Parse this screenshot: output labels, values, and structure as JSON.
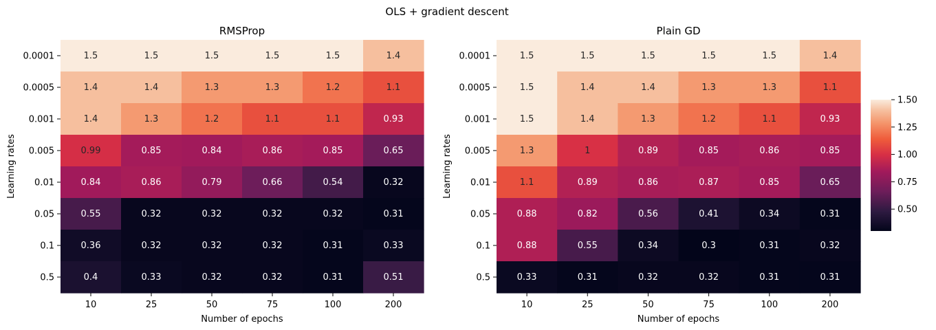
{
  "suptitle": "OLS + gradient descent",
  "colorbar": {
    "min": 0.3,
    "max": 1.5,
    "ticks": [
      "0.50",
      "0.75",
      "1.00",
      "1.25",
      "1.50"
    ]
  },
  "chart_data": [
    {
      "type": "heatmap",
      "title": "RMSProp",
      "xlabel": "Number of epochs",
      "ylabel": "Learning rates",
      "x_categories": [
        "10",
        "25",
        "50",
        "75",
        "100",
        "200"
      ],
      "y_categories": [
        "0.0001",
        "0.0005",
        "0.001",
        "0.005",
        "0.01",
        "0.05",
        "0.1",
        "0.5"
      ],
      "values": [
        [
          1.5,
          1.5,
          1.5,
          1.5,
          1.5,
          1.4
        ],
        [
          1.4,
          1.4,
          1.3,
          1.3,
          1.2,
          1.1
        ],
        [
          1.4,
          1.3,
          1.2,
          1.1,
          1.1,
          0.93
        ],
        [
          0.99,
          0.85,
          0.84,
          0.86,
          0.85,
          0.65
        ],
        [
          0.84,
          0.86,
          0.79,
          0.66,
          0.54,
          0.32
        ],
        [
          0.55,
          0.32,
          0.32,
          0.32,
          0.32,
          0.31
        ],
        [
          0.36,
          0.32,
          0.32,
          0.32,
          0.31,
          0.33
        ],
        [
          0.4,
          0.33,
          0.32,
          0.32,
          0.31,
          0.51
        ]
      ],
      "value_labels": [
        [
          "1.5",
          "1.5",
          "1.5",
          "1.5",
          "1.5",
          "1.4"
        ],
        [
          "1.4",
          "1.4",
          "1.3",
          "1.3",
          "1.2",
          "1.1"
        ],
        [
          "1.4",
          "1.3",
          "1.2",
          "1.1",
          "1.1",
          "0.93"
        ],
        [
          "0.99",
          "0.85",
          "0.84",
          "0.86",
          "0.85",
          "0.65"
        ],
        [
          "0.84",
          "0.86",
          "0.79",
          "0.66",
          "0.54",
          "0.32"
        ],
        [
          "0.55",
          "0.32",
          "0.32",
          "0.32",
          "0.32",
          "0.31"
        ],
        [
          "0.36",
          "0.32",
          "0.32",
          "0.32",
          "0.31",
          "0.33"
        ],
        [
          "0.4",
          "0.33",
          "0.32",
          "0.32",
          "0.31",
          "0.51"
        ]
      ]
    },
    {
      "type": "heatmap",
      "title": "Plain GD",
      "xlabel": "Number of epochs",
      "ylabel": "Learning rates",
      "x_categories": [
        "10",
        "25",
        "50",
        "75",
        "100",
        "200"
      ],
      "y_categories": [
        "0.0001",
        "0.0005",
        "0.001",
        "0.005",
        "0.01",
        "0.05",
        "0.1",
        "0.5"
      ],
      "values": [
        [
          1.5,
          1.5,
          1.5,
          1.5,
          1.5,
          1.4
        ],
        [
          1.5,
          1.4,
          1.4,
          1.3,
          1.3,
          1.1
        ],
        [
          1.5,
          1.4,
          1.3,
          1.2,
          1.1,
          0.93
        ],
        [
          1.3,
          1.0,
          0.89,
          0.85,
          0.86,
          0.85
        ],
        [
          1.1,
          0.89,
          0.86,
          0.87,
          0.85,
          0.65
        ],
        [
          0.88,
          0.82,
          0.56,
          0.41,
          0.34,
          0.31
        ],
        [
          0.88,
          0.55,
          0.34,
          0.3,
          0.31,
          0.32
        ],
        [
          0.33,
          0.31,
          0.32,
          0.32,
          0.31,
          0.31
        ]
      ],
      "value_labels": [
        [
          "1.5",
          "1.5",
          "1.5",
          "1.5",
          "1.5",
          "1.4"
        ],
        [
          "1.5",
          "1.4",
          "1.4",
          "1.3",
          "1.3",
          "1.1"
        ],
        [
          "1.5",
          "1.4",
          "1.3",
          "1.2",
          "1.1",
          "0.93"
        ],
        [
          "1.3",
          "1",
          "0.89",
          "0.85",
          "0.86",
          "0.85"
        ],
        [
          "1.1",
          "0.89",
          "0.86",
          "0.87",
          "0.85",
          "0.65"
        ],
        [
          "0.88",
          "0.82",
          "0.56",
          "0.41",
          "0.34",
          "0.31"
        ],
        [
          "0.88",
          "0.55",
          "0.34",
          "0.3",
          "0.31",
          "0.32"
        ],
        [
          "0.33",
          "0.31",
          "0.32",
          "0.32",
          "0.31",
          "0.31"
        ]
      ]
    }
  ]
}
